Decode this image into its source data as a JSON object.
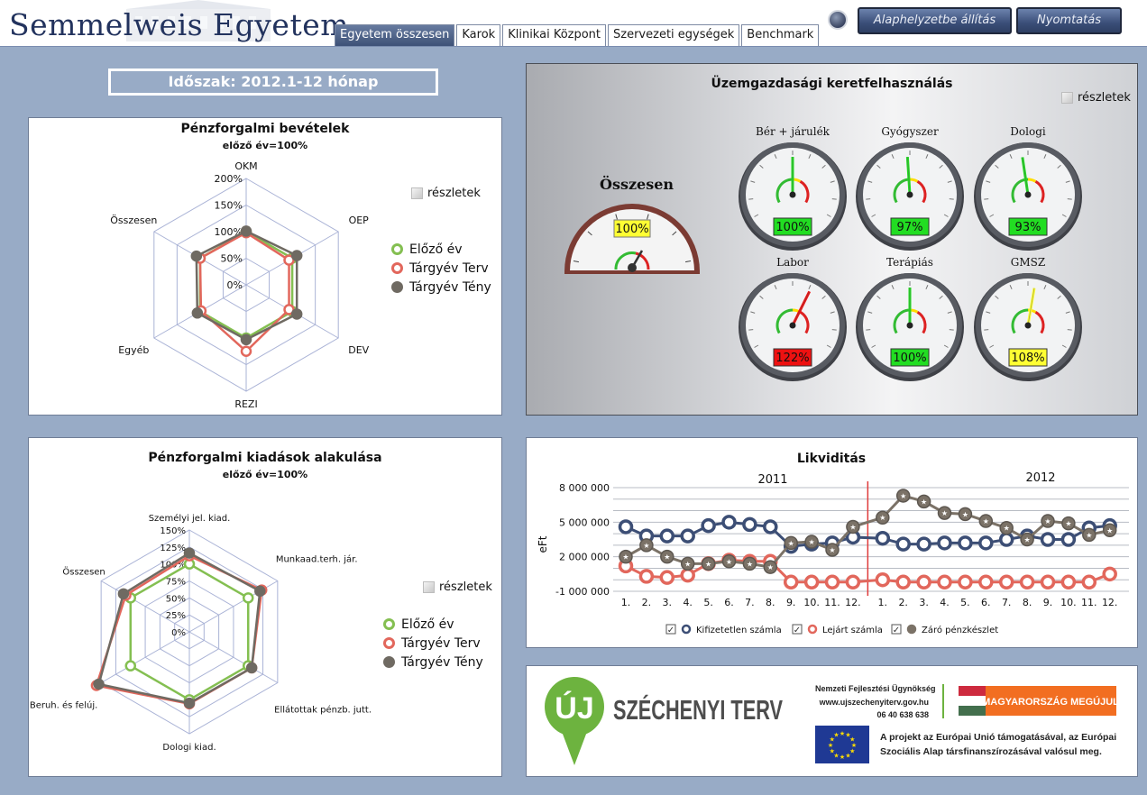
{
  "header": {
    "logo": "Semmelweis Egyetem",
    "tabs": [
      "Egyetem összesen",
      "Karok",
      "Klinikai Központ",
      "Szervezeti egységek",
      "Benchmark"
    ],
    "active_tab": 0,
    "reset_button": "Alaphelyzetbe állítás",
    "print_button": "Nyomtatás"
  },
  "period": "Időszak: 2012.1-12 hónap",
  "details_label": "részletek",
  "legend": {
    "items": [
      "Előző év",
      "Tárgyév Terv",
      "Tárgyév Tény"
    ],
    "colors": [
      "#84bf51",
      "#e2675c",
      "#6f6a62"
    ]
  },
  "revenue": {
    "title": "Pénzforgalmi bevételek",
    "subtitle": "előző év=100%"
  },
  "expenses": {
    "title": "Pénzforgalmi kiadások  alakulása",
    "subtitle": "előző év=100%"
  },
  "operations": {
    "title": "Üzemgazdasági keretfelhasználás",
    "total_label": "Összesen",
    "total_value": "100%",
    "total_value_num": 100,
    "gauges": [
      {
        "label": "Bér + járulék",
        "value": "100%",
        "value_num": 100,
        "status_color": "#22dd22"
      },
      {
        "label": "Gyógyszer",
        "value": "97%",
        "value_num": 97,
        "status_color": "#22dd22"
      },
      {
        "label": "Dologi",
        "value": "93%",
        "value_num": 93,
        "status_color": "#22dd22"
      },
      {
        "label": "Labor",
        "value": "122%",
        "value_num": 122,
        "status_color": "#ee1111"
      },
      {
        "label": "Terápiás",
        "value": "100%",
        "value_num": 100,
        "status_color": "#22dd22"
      },
      {
        "label": "GMSZ",
        "value": "108%",
        "value_num": 108,
        "status_color": "#ffff33"
      }
    ]
  },
  "liquidity": {
    "title": "Likviditás",
    "year_labels": [
      "2011",
      "2012"
    ],
    "y_axis_label": "eFt",
    "y_ticks": [
      "8 000 000",
      "5 000 000",
      "2 000 000",
      "-1 000 000"
    ],
    "x_ticks": [
      "1.",
      "2.",
      "3.",
      "4.",
      "5.",
      "6.",
      "7.",
      "8.",
      "9.",
      "10.",
      "11.",
      "12.",
      "1.",
      "2.",
      "3.",
      "4.",
      "5.",
      "6.",
      "7.",
      "8.",
      "9.",
      "10.",
      "11.",
      "12."
    ],
    "legend": [
      "Kifizetetlen  számla",
      "Lejárt számla",
      "Záró pénzkészlet"
    ],
    "legend_checked": [
      true,
      true,
      true
    ],
    "colors": [
      "#3c4e75",
      "#e2675c",
      "#7b7267"
    ]
  },
  "footer": {
    "uj": "ÚJ",
    "szechenyi": "SZÉCHENYI TERV",
    "agency": "Nemzeti Fejlesztési Ügynökség",
    "url": "www.ujszechenyiterv.gov.hu",
    "phone": "06 40 638 638",
    "mm": "MAGYARORSZÁG MEGÚJUL",
    "eu_text_1": "A projekt az Európai Unió támogatásával, az Európai",
    "eu_text_2": "Szociális Alap társfinanszírozásával valósul meg."
  },
  "chart_data": [
    {
      "type": "radar",
      "title": "Pénzforgalmi bevételek",
      "subtitle": "előző év=100%",
      "axes": [
        "OKM",
        "OEP",
        "DEV",
        "REZI",
        "Egyéb",
        "Összesen"
      ],
      "ticks": [
        "200%",
        "150%",
        "100%",
        "50%",
        "0%"
      ],
      "rmax": 200,
      "series": [
        {
          "name": "Előző év",
          "values": [
            100,
            100,
            100,
            100,
            100,
            100
          ],
          "color": "#84bf51"
        },
        {
          "name": "Tárgyév Terv",
          "values": [
            98,
            93,
            93,
            125,
            98,
            100
          ],
          "color": "#e2675c"
        },
        {
          "name": "Tárgyév Tény",
          "values": [
            101,
            110,
            110,
            103,
            106,
            108
          ],
          "color": "#6f6a62"
        }
      ]
    },
    {
      "type": "radar",
      "title": "Pénzforgalmi kiadások  alakulása",
      "subtitle": "előző év=100%",
      "axes": [
        "Személyi jel. kiad.",
        "Munkaad.terh. jár.",
        "Ellátottak pénzb. jutt.",
        "Dologi kiad.",
        "Beruh. és felúj.",
        "Összesen"
      ],
      "ticks": [
        "150%",
        "125%",
        "100%",
        "75%",
        "50%",
        "25%",
        "0%"
      ],
      "rmax": 150,
      "series": [
        {
          "name": "Előző év",
          "values": [
            100,
            100,
            100,
            100,
            100,
            100
          ],
          "color": "#84bf51"
        },
        {
          "name": "Tárgyév Terv",
          "values": [
            112,
            123,
            106,
            106,
            158,
            108
          ],
          "color": "#e2675c"
        },
        {
          "name": "Tárgyév Tény",
          "values": [
            116,
            120,
            106,
            105,
            154,
            112
          ],
          "color": "#6f6a62"
        }
      ]
    },
    {
      "type": "line",
      "title": "Likviditás",
      "xlabel": "",
      "ylabel": "eFt",
      "ylim": [
        -1000000,
        8000000
      ],
      "categories": [
        "1.",
        "2.",
        "3.",
        "4.",
        "5.",
        "6.",
        "7.",
        "8.",
        "9.",
        "10.",
        "11.",
        "12.",
        "1.",
        "2.",
        "3.",
        "4.",
        "5.",
        "6.",
        "7.",
        "8.",
        "9.",
        "10.",
        "11.",
        "12."
      ],
      "series": [
        {
          "name": "Kifizetetlen  számla",
          "values": [
            4600000,
            3800000,
            3800000,
            3800000,
            4700000,
            5000000,
            4800000,
            4600000,
            2900000,
            3100000,
            3200000,
            3700000,
            3600000,
            3100000,
            3100000,
            3200000,
            3200000,
            3200000,
            3500000,
            3800000,
            3500000,
            3500000,
            4500000,
            4700000
          ],
          "color": "#3c4e75"
        },
        {
          "name": "Lejárt számla",
          "values": [
            1200000,
            300000,
            200000,
            400000,
            1400000,
            1700000,
            1600000,
            1600000,
            -200000,
            -200000,
            -200000,
            -200000,
            0,
            -200000,
            -200000,
            -200000,
            -200000,
            -200000,
            -200000,
            -200000,
            -200000,
            -200000,
            -200000,
            500000
          ],
          "color": "#e2675c"
        },
        {
          "name": "Záró pénzkészlet",
          "values": [
            2000000,
            3000000,
            2000000,
            1400000,
            1400000,
            1600000,
            1400000,
            1100000,
            3200000,
            3300000,
            2600000,
            4600000,
            5400000,
            7300000,
            6800000,
            5800000,
            5700000,
            5100000,
            4500000,
            3500000,
            5100000,
            4900000,
            3900000,
            4300000
          ],
          "color": "#7b7267"
        }
      ],
      "vertical_marker_between": [
        "12.",
        "1."
      ],
      "legend_position": "bottom"
    }
  ]
}
